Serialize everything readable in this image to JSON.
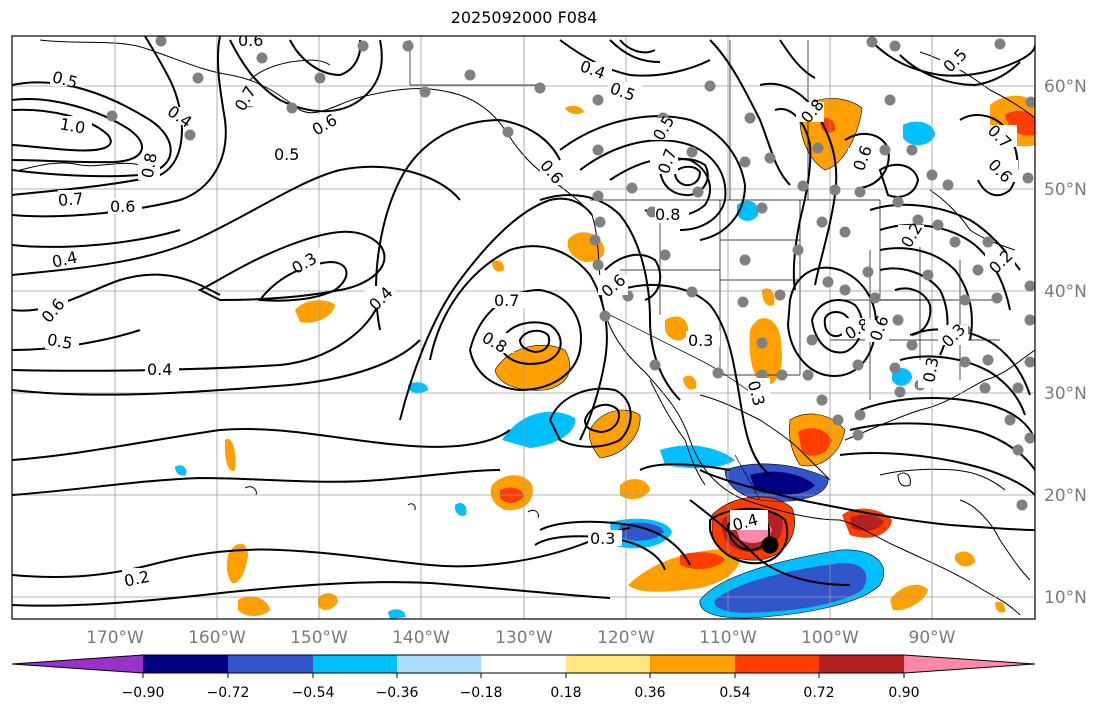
{
  "title": "2025092000 F084",
  "map": {
    "longitude_labels": [
      "170°W",
      "160°W",
      "150°W",
      "140°W",
      "130°W",
      "120°W",
      "110°W",
      "100°W",
      "90°W"
    ],
    "latitude_labels": [
      "60°N",
      "50°N",
      "40°N",
      "30°N",
      "20°N",
      "10°N"
    ],
    "contour_labels": [
      "0.6",
      "0.5",
      "1.0",
      "0.8",
      "0.7",
      "0.6",
      "0.4",
      "0.6",
      "0.5",
      "0.4",
      "0.4",
      "0.3",
      "0.4",
      "0.7",
      "0.8",
      "0.6",
      "0.3",
      "0.3",
      "0.4",
      "0.3",
      "0.2",
      "0.6",
      "0.5",
      "0.7",
      "0.5",
      "0.4",
      "0.5",
      "0.8",
      "0.7",
      "0.6",
      "0.8",
      "0.6",
      "0.3",
      "0.2",
      "0.5",
      "0.7",
      "0.6",
      "0.3",
      "0.2",
      "0.8",
      "0.6"
    ],
    "marker": "black-dot",
    "station_color": "#808080"
  },
  "colorbar": {
    "ticks": [
      "−0.90",
      "−0.72",
      "−0.54",
      "−0.36",
      "−0.18",
      "0.18",
      "0.36",
      "0.54",
      "0.72",
      "0.90"
    ],
    "colors": [
      "#9933cc",
      "#000080",
      "#3355cc",
      "#00bfff",
      "#aaddff",
      "#ffffff",
      "#ffe680",
      "#ffa000",
      "#ff3d00",
      "#b22222",
      "#ff88aa"
    ]
  }
}
